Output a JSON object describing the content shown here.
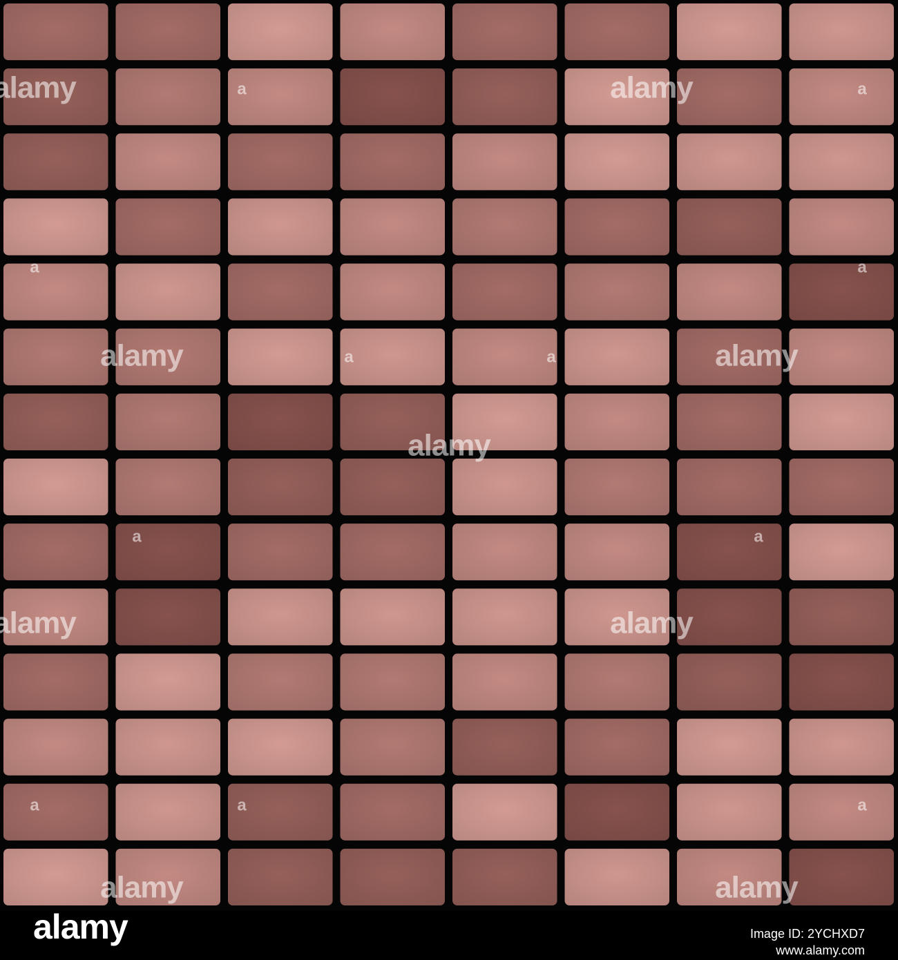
{
  "watermark": {
    "logo": "alamy",
    "mark": "a"
  },
  "footer": {
    "logo": "alamy",
    "image_id": "Image ID: 2YCHXD7",
    "url": "www.alamy.com"
  }
}
